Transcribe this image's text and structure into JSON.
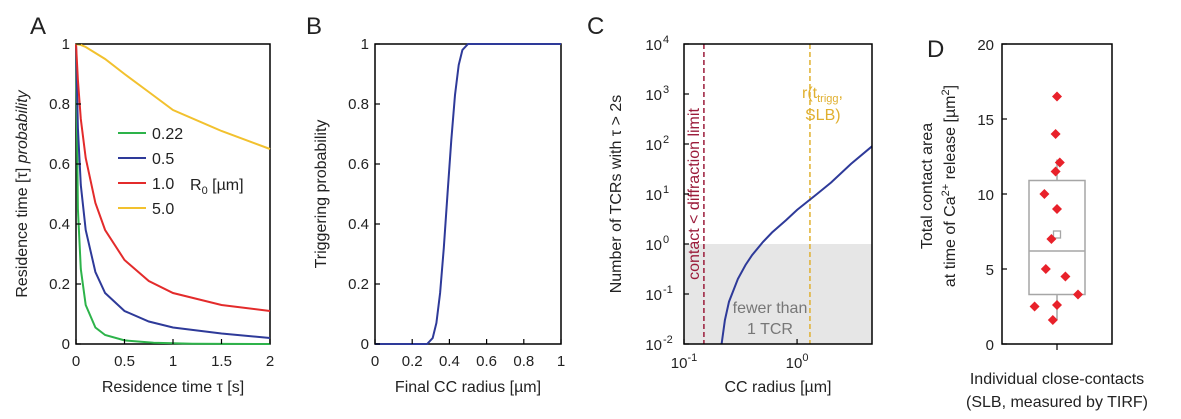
{
  "colors": {
    "green": "#2db34a",
    "blue": "#2e3a99",
    "red": "#e32b2b",
    "yellow": "#f2c12e",
    "darkred": "#9b1b3a",
    "gold": "#e0b030",
    "shade": "#e6e6e6",
    "marker": "#e8212a",
    "box": "#a6a6a6"
  },
  "chart_data": [
    {
      "type": "line",
      "panel_label": "A",
      "xlabel": "Residence time τ [s]",
      "ylabel_main": "Residence time [τ] ",
      "ylabel_italic": "probability",
      "xlim": [
        0,
        2
      ],
      "ylim": [
        0,
        1
      ],
      "xticks": [
        0,
        0.5,
        1,
        1.5,
        2
      ],
      "xtick_labels": [
        "0",
        "0.5",
        "1",
        "1.5",
        "2"
      ],
      "yticks": [
        0,
        0.2,
        0.4,
        0.6,
        0.8,
        1
      ],
      "ytick_labels": [
        "0",
        "0.2",
        "0.4",
        "0.6",
        "0.8",
        "1"
      ],
      "legend_unit": "R",
      "legend_sub": "0",
      "legend_unit_rest": " [µm]",
      "series": [
        {
          "name": "0.22",
          "color_key": "green",
          "x": [
            0,
            0.02,
            0.05,
            0.1,
            0.2,
            0.3,
            0.5,
            0.8,
            1.2,
            2
          ],
          "y": [
            1,
            0.45,
            0.25,
            0.13,
            0.055,
            0.03,
            0.012,
            0.004,
            0.001,
            0
          ]
        },
        {
          "name": "0.5",
          "color_key": "blue",
          "x": [
            0,
            0.02,
            0.05,
            0.1,
            0.2,
            0.3,
            0.5,
            0.75,
            1,
            1.5,
            2
          ],
          "y": [
            1,
            0.72,
            0.53,
            0.38,
            0.24,
            0.17,
            0.11,
            0.075,
            0.055,
            0.035,
            0.02
          ]
        },
        {
          "name": "1.0",
          "color_key": "red",
          "x": [
            0,
            0.02,
            0.05,
            0.1,
            0.2,
            0.3,
            0.5,
            0.75,
            1,
            1.5,
            2
          ],
          "y": [
            1,
            0.88,
            0.75,
            0.62,
            0.47,
            0.38,
            0.28,
            0.21,
            0.17,
            0.13,
            0.11
          ]
        },
        {
          "name": "5.0",
          "color_key": "yellow",
          "x": [
            0,
            0.05,
            0.1,
            0.2,
            0.3,
            0.5,
            0.75,
            1,
            1.5,
            2
          ],
          "y": [
            1,
            0.997,
            0.99,
            0.97,
            0.95,
            0.9,
            0.84,
            0.78,
            0.71,
            0.65
          ]
        }
      ]
    },
    {
      "type": "line",
      "panel_label": "B",
      "xlabel": "Final CC radius [µm]",
      "ylabel": "Triggering probability",
      "xlim": [
        0,
        1
      ],
      "ylim": [
        0,
        1
      ],
      "xticks": [
        0,
        0.2,
        0.4,
        0.6,
        0.8,
        1
      ],
      "xtick_labels": [
        "0",
        "0.2",
        "0.4",
        "0.6",
        "0.8",
        "1"
      ],
      "yticks": [
        0,
        0.2,
        0.4,
        0.6,
        0.8,
        1
      ],
      "ytick_labels": [
        "0",
        "0.2",
        "0.4",
        "0.6",
        "0.8",
        "1"
      ],
      "series": [
        {
          "color_key": "blue",
          "x": [
            0,
            0.28,
            0.31,
            0.33,
            0.35,
            0.37,
            0.39,
            0.41,
            0.43,
            0.45,
            0.47,
            0.5,
            1
          ],
          "y": [
            0,
            0,
            0.02,
            0.07,
            0.17,
            0.32,
            0.5,
            0.68,
            0.83,
            0.93,
            0.98,
            1,
            1
          ]
        }
      ]
    },
    {
      "type": "line",
      "panel_label": "C",
      "xlabel": "CC radius [µm]",
      "ylabel": "Number of TCRs with τ > 2s",
      "xscale": "log",
      "yscale": "log",
      "xlim": [
        0.1,
        4.6
      ],
      "ylim": [
        0.01,
        10000
      ],
      "xticks": [
        0.1,
        1
      ],
      "xtick_base": [
        "10",
        "10"
      ],
      "xtick_exp": [
        "-1",
        "0"
      ],
      "yticks": [
        0.01,
        0.1,
        1,
        10,
        100,
        1000,
        10000
      ],
      "ytick_base": [
        "10",
        "10",
        "10",
        "10",
        "10",
        "10",
        "10"
      ],
      "ytick_exp": [
        "-2",
        "-1",
        "0",
        "1",
        "2",
        "3",
        "4"
      ],
      "shade_below": 1,
      "shade_text": [
        "fewer than",
        "1 TCR"
      ],
      "vline1": {
        "x": 0.15,
        "label": "contact < diffraction limit"
      },
      "vline2": {
        "x": 1.3,
        "label_line1": "r(t",
        "label_sub": "trigg",
        "label_line1_end": ",",
        "label_line2": "SLB)"
      },
      "series": [
        {
          "color_key": "blue",
          "x": [
            0.215,
            0.23,
            0.25,
            0.3,
            0.35,
            0.4,
            0.5,
            0.6,
            0.8,
            1,
            1.5,
            2,
            3,
            4.6
          ],
          "y": [
            0.01,
            0.03,
            0.07,
            0.2,
            0.38,
            0.6,
            1.1,
            1.7,
            3.0,
            4.8,
            10,
            17,
            40,
            90
          ]
        }
      ]
    },
    {
      "type": "box",
      "panel_label": "D",
      "ylabel_line1": "Total contact area",
      "ylabel_line2_pre": "at time of Ca",
      "ylabel_sup": "2+",
      "ylabel_line2_mid": " release [µm",
      "ylabel_sup2": "2",
      "ylabel_line2_end": "]",
      "xlabel_line1": "Individual close-contacts",
      "xlabel_line2": "(SLB, measured by TIRF)",
      "ylim": [
        0,
        20
      ],
      "yticks": [
        0,
        5,
        10,
        15,
        20
      ],
      "ytick_labels": [
        "0",
        "5",
        "10",
        "15",
        "20"
      ],
      "box": {
        "q1": 3.3,
        "median": 6.2,
        "q3": 10.9,
        "whisker_low": 1.6,
        "whisker_high": 12.3,
        "mean": 7.3
      },
      "points": [
        {
          "y": 16.5,
          "dx": 0.0
        },
        {
          "y": 14.0,
          "dx": -0.05
        },
        {
          "y": 12.1,
          "dx": 0.1
        },
        {
          "y": 11.5,
          "dx": -0.05
        },
        {
          "y": 10.0,
          "dx": -0.45
        },
        {
          "y": 9.0,
          "dx": 0.0
        },
        {
          "y": 7.0,
          "dx": -0.2
        },
        {
          "y": 5.0,
          "dx": -0.4
        },
        {
          "y": 4.5,
          "dx": 0.3
        },
        {
          "y": 3.3,
          "dx": 0.75
        },
        {
          "y": 2.6,
          "dx": 0.0
        },
        {
          "y": 2.5,
          "dx": -0.8
        },
        {
          "y": 1.6,
          "dx": -0.15
        }
      ]
    }
  ]
}
